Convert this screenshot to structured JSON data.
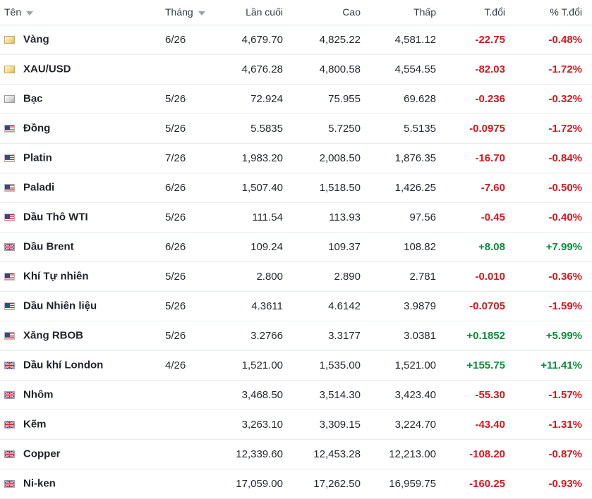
{
  "headers": {
    "name": "Tên",
    "month": "Tháng",
    "last": "Lần cuối",
    "high": "Cao",
    "low": "Thấp",
    "change": "T.đổi",
    "change_pct": "% T.đổi"
  },
  "colors": {
    "negative": "#d0191f",
    "positive": "#0d8a3a"
  },
  "rows": [
    {
      "icon": "gold-commodity-icon",
      "flag": "gold",
      "name": "Vàng",
      "month": "6/26",
      "last": "4,679.70",
      "high": "4,825.22",
      "low": "4,581.12",
      "change": "-22.75",
      "change_pct": "-0.48%",
      "direction": "neg"
    },
    {
      "icon": "gold-commodity-icon",
      "flag": "gold",
      "name": "XAU/USD",
      "month": "",
      "last": "4,676.28",
      "high": "4,800.58",
      "low": "4,554.55",
      "change": "-82.03",
      "change_pct": "-1.72%",
      "direction": "neg"
    },
    {
      "icon": "silver-commodity-icon",
      "flag": "silver",
      "name": "Bạc",
      "month": "5/26",
      "last": "72.924",
      "high": "75.955",
      "low": "69.628",
      "change": "-0.236",
      "change_pct": "-0.32%",
      "direction": "neg"
    },
    {
      "icon": "us-flag-icon",
      "flag": "us",
      "name": "Đồng",
      "month": "5/26",
      "last": "5.5835",
      "high": "5.7250",
      "low": "5.5135",
      "change": "-0.0975",
      "change_pct": "-1.72%",
      "direction": "neg"
    },
    {
      "icon": "us-flag-icon",
      "flag": "us",
      "name": "Platin",
      "month": "7/26",
      "last": "1,983.20",
      "high": "2,008.50",
      "low": "1,876.35",
      "change": "-16.70",
      "change_pct": "-0.84%",
      "direction": "neg"
    },
    {
      "icon": "us-flag-icon",
      "flag": "us",
      "name": "Paladi",
      "month": "6/26",
      "last": "1,507.40",
      "high": "1,518.50",
      "low": "1,426.25",
      "change": "-7.60",
      "change_pct": "-0.50%",
      "direction": "neg"
    },
    {
      "icon": "us-flag-icon",
      "flag": "us",
      "name": "Dầu Thô WTI",
      "month": "5/26",
      "last": "111.54",
      "high": "113.93",
      "low": "97.56",
      "change": "-0.45",
      "change_pct": "-0.40%",
      "direction": "neg"
    },
    {
      "icon": "uk-flag-icon",
      "flag": "uk",
      "name": "Dầu Brent",
      "month": "6/26",
      "last": "109.24",
      "high": "109.37",
      "low": "108.82",
      "change": "+8.08",
      "change_pct": "+7.99%",
      "direction": "pos"
    },
    {
      "icon": "us-flag-icon",
      "flag": "us",
      "name": "Khí Tự nhiên",
      "month": "5/26",
      "last": "2.800",
      "high": "2.890",
      "low": "2.781",
      "change": "-0.010",
      "change_pct": "-0.36%",
      "direction": "neg"
    },
    {
      "icon": "us-flag-icon",
      "flag": "us",
      "name": "Dầu Nhiên liệu",
      "month": "5/26",
      "last": "4.3611",
      "high": "4.6142",
      "low": "3.9879",
      "change": "-0.0705",
      "change_pct": "-1.59%",
      "direction": "neg"
    },
    {
      "icon": "us-flag-icon",
      "flag": "us",
      "name": "Xăng RBOB",
      "month": "5/26",
      "last": "3.2766",
      "high": "3.3177",
      "low": "3.0381",
      "change": "+0.1852",
      "change_pct": "+5.99%",
      "direction": "pos"
    },
    {
      "icon": "uk-flag-icon",
      "flag": "uk",
      "name": "Dầu khí London",
      "month": "4/26",
      "last": "1,521.00",
      "high": "1,535.00",
      "low": "1,521.00",
      "change": "+155.75",
      "change_pct": "+11.41%",
      "direction": "pos"
    },
    {
      "icon": "uk-flag-icon",
      "flag": "uk",
      "name": "Nhôm",
      "month": "",
      "last": "3,468.50",
      "high": "3,514.30",
      "low": "3,423.40",
      "change": "-55.30",
      "change_pct": "-1.57%",
      "direction": "neg"
    },
    {
      "icon": "uk-flag-icon",
      "flag": "uk",
      "name": "Kẽm",
      "month": "",
      "last": "3,263.10",
      "high": "3,309.15",
      "low": "3,224.70",
      "change": "-43.40",
      "change_pct": "-1.31%",
      "direction": "neg"
    },
    {
      "icon": "uk-flag-icon",
      "flag": "uk",
      "name": "Copper",
      "month": "",
      "last": "12,339.60",
      "high": "12,453.28",
      "low": "12,213.00",
      "change": "-108.20",
      "change_pct": "-0.87%",
      "direction": "neg"
    },
    {
      "icon": "uk-flag-icon",
      "flag": "uk",
      "name": "Ni-ken",
      "month": "",
      "last": "17,059.00",
      "high": "17,262.50",
      "low": "16,959.75",
      "change": "-160.25",
      "change_pct": "-0.93%",
      "direction": "neg"
    }
  ]
}
